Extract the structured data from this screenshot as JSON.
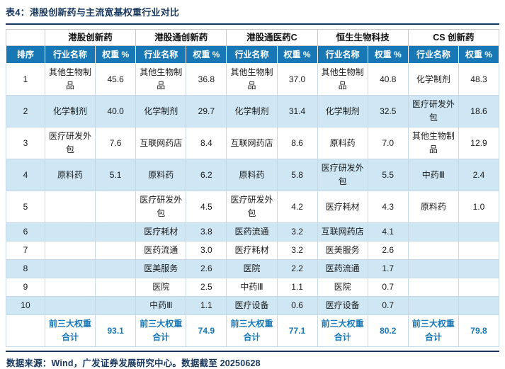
{
  "title": "表4：港股创新药与主流宽基权重行业对比",
  "footer": "数据来源：Wind，广发证券发展研究中心。数据截至 20250628",
  "colors": {
    "header_blue": "#1878B6",
    "row_alt_blue": "#CFE7F4",
    "title_navy": "#17375E",
    "grid_line": "#C5D8E4"
  },
  "table": {
    "corner_label": "",
    "groups": [
      "港股创新药",
      "港股通创新药",
      "港股通医药C",
      "恒生生物科技",
      "CS 创新药"
    ],
    "col_headers": {
      "rank": "排序",
      "name": "行业名称",
      "weight": "权重 %"
    },
    "rows": [
      {
        "rank": "1",
        "cells": [
          {
            "name": "其他生物制品",
            "weight": "45.6"
          },
          {
            "name": "其他生物制品",
            "weight": "36.8"
          },
          {
            "name": "其他生物制品",
            "weight": "37.0"
          },
          {
            "name": "其他生物制品",
            "weight": "40.8"
          },
          {
            "name": "化学制剂",
            "weight": "48.3"
          }
        ]
      },
      {
        "rank": "2",
        "cells": [
          {
            "name": "化学制剂",
            "weight": "40.0"
          },
          {
            "name": "化学制剂",
            "weight": "29.7"
          },
          {
            "name": "化学制剂",
            "weight": "31.4"
          },
          {
            "name": "化学制剂",
            "weight": "32.5"
          },
          {
            "name": "医疗研发外包",
            "weight": "18.6"
          }
        ]
      },
      {
        "rank": "3",
        "cells": [
          {
            "name": "医疗研发外包",
            "weight": "7.6"
          },
          {
            "name": "互联网药店",
            "weight": "8.4"
          },
          {
            "name": "互联网药店",
            "weight": "8.6"
          },
          {
            "name": "原料药",
            "weight": "7.0"
          },
          {
            "name": "其他生物制品",
            "weight": "12.9"
          }
        ]
      },
      {
        "rank": "4",
        "cells": [
          {
            "name": "原料药",
            "weight": "5.1"
          },
          {
            "name": "原料药",
            "weight": "6.2"
          },
          {
            "name": "原料药",
            "weight": "5.8"
          },
          {
            "name": "医疗研发外包",
            "weight": "5.5"
          },
          {
            "name": "中药Ⅲ",
            "weight": "2.4"
          }
        ]
      },
      {
        "rank": "5",
        "cells": [
          {
            "name": "",
            "weight": ""
          },
          {
            "name": "医疗研发外包",
            "weight": "4.5"
          },
          {
            "name": "医疗研发外包",
            "weight": "4.2"
          },
          {
            "name": "医疗耗材",
            "weight": "4.3"
          },
          {
            "name": "原料药",
            "weight": "1.0"
          }
        ]
      },
      {
        "rank": "6",
        "cells": [
          {
            "name": "",
            "weight": ""
          },
          {
            "name": "医疗耗材",
            "weight": "3.8"
          },
          {
            "name": "医药流通",
            "weight": "3.2"
          },
          {
            "name": "互联网药店",
            "weight": "4.1"
          },
          {
            "name": "",
            "weight": ""
          }
        ]
      },
      {
        "rank": "7",
        "cells": [
          {
            "name": "",
            "weight": ""
          },
          {
            "name": "医药流通",
            "weight": "3.0"
          },
          {
            "name": "医疗耗材",
            "weight": "3.2"
          },
          {
            "name": "医美服务",
            "weight": "2.6"
          },
          {
            "name": "",
            "weight": ""
          }
        ]
      },
      {
        "rank": "8",
        "cells": [
          {
            "name": "",
            "weight": ""
          },
          {
            "name": "医美服务",
            "weight": "2.6"
          },
          {
            "name": "医院",
            "weight": "2.2"
          },
          {
            "name": "医药流通",
            "weight": "1.7"
          },
          {
            "name": "",
            "weight": ""
          }
        ]
      },
      {
        "rank": "9",
        "cells": [
          {
            "name": "",
            "weight": ""
          },
          {
            "name": "医院",
            "weight": "2.5"
          },
          {
            "name": "中药Ⅲ",
            "weight": "1.1"
          },
          {
            "name": "医院",
            "weight": "0.7"
          },
          {
            "name": "",
            "weight": ""
          }
        ]
      },
      {
        "rank": "10",
        "cells": [
          {
            "name": "",
            "weight": ""
          },
          {
            "name": "中药Ⅲ",
            "weight": "1.1"
          },
          {
            "name": "医疗设备",
            "weight": "0.6"
          },
          {
            "name": "医疗设备",
            "weight": "0.7"
          },
          {
            "name": "",
            "weight": ""
          }
        ]
      }
    ],
    "summary": {
      "rank": "",
      "label": "前三大权重合计",
      "values": [
        "93.1",
        "74.9",
        "77.1",
        "80.2",
        "79.8"
      ]
    }
  }
}
